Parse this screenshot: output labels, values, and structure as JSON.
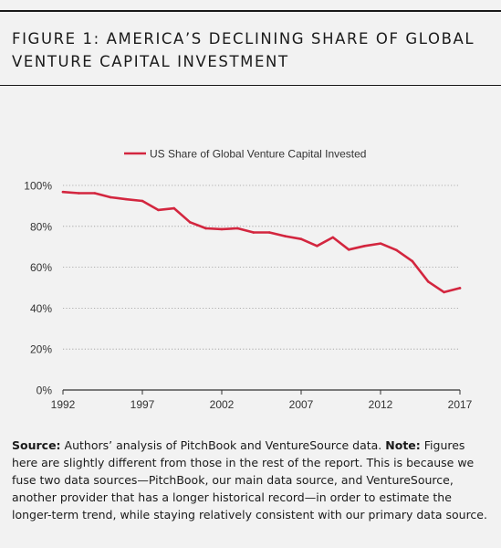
{
  "figure_title": {
    "line1": "FIGURE 1: AMERICA’S DECLINING SHARE OF GLOBAL",
    "line2": "VENTURE CAPITAL INVESTMENT"
  },
  "caption": {
    "source_label": "Source:",
    "source_text": " Authors’ analysis of PitchBook and VentureSource data.  ",
    "note_label": "Note:",
    "note_text": " Figures here are slightly different from those in the rest of the report. This is because we fuse two data sources—PitchBook, our main data source, and VentureSource, another provider that has a longer historical record—in order to estimate the longer-term trend, while staying relatively consistent with our primary data source."
  },
  "colors": {
    "series": "#d3263f",
    "axis": "#333333",
    "grid": "#9a9a9a",
    "background": "#f2f2f2"
  },
  "chart_data": {
    "type": "line",
    "title": "",
    "xlabel": "",
    "ylabel": "",
    "legend_position": "top-center",
    "grid": "horizontal-dotted",
    "xlim": [
      1992,
      2017
    ],
    "ylim": [
      0,
      100
    ],
    "x_ticks": [
      1992,
      1997,
      2002,
      2007,
      2012,
      2017
    ],
    "x_tick_labels": [
      "1992",
      "1997",
      "2002",
      "2007",
      "2012",
      "2017"
    ],
    "y_ticks": [
      0,
      20,
      40,
      60,
      80,
      100
    ],
    "y_tick_labels": [
      "0%",
      "20%",
      "40%",
      "60%",
      "80%",
      "100%"
    ],
    "series": [
      {
        "name": "US Share of Global Venture Capital Invested",
        "x": [
          1992,
          1993,
          1994,
          1995,
          1996,
          1997,
          1998,
          1999,
          2000,
          2001,
          2002,
          2003,
          2004,
          2005,
          2006,
          2007,
          2008,
          2009,
          2010,
          2011,
          2012,
          2013,
          2014,
          2015,
          2016,
          2017
        ],
        "y": [
          96.8,
          96.2,
          96.2,
          94.2,
          93.2,
          92.4,
          88,
          88.8,
          82,
          79,
          78.6,
          79,
          77,
          77,
          75.2,
          73.8,
          70.4,
          74.6,
          68.6,
          70.4,
          71.6,
          68.4,
          63,
          53,
          47.8,
          49.8
        ]
      }
    ]
  }
}
